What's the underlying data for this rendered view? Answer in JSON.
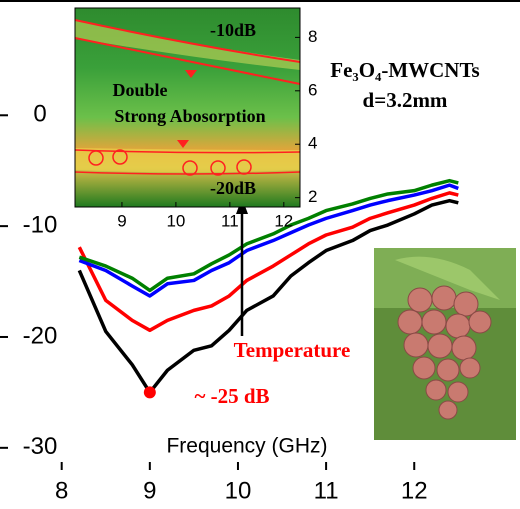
{
  "chart_data": [
    {
      "type": "line",
      "x_label": "Frequency (GHz)",
      "x": [
        8.2,
        8.5,
        8.8,
        9.0,
        9.2,
        9.5,
        9.7,
        9.9,
        10.1,
        10.4,
        10.6,
        10.8,
        11.0,
        11.3,
        11.5,
        11.7,
        12.0,
        12.2,
        12.4,
        12.5
      ],
      "series": [
        {
          "color": "#000000",
          "values": [
            -14,
            -19.5,
            -22.5,
            -25,
            -23,
            -21.2,
            -20.8,
            -19.4,
            -17.6,
            -16.3,
            -14.5,
            -13.3,
            -12.2,
            -11.3,
            -10.4,
            -9.9,
            -8.9,
            -8.1,
            -7.7,
            -7.9
          ]
        },
        {
          "color": "#ff0000",
          "values": [
            -11.9,
            -16.7,
            -18.5,
            -19.4,
            -18.5,
            -17.6,
            -17.2,
            -16.3,
            -14.9,
            -13.6,
            -12.6,
            -11.6,
            -10.8,
            -10.1,
            -9.3,
            -8.8,
            -8.1,
            -7.5,
            -7.0,
            -7.2
          ]
        },
        {
          "color": "#0000ff",
          "values": [
            -13.1,
            -14,
            -15.4,
            -16.3,
            -15.2,
            -14.9,
            -14,
            -13.3,
            -12.2,
            -11.3,
            -10.6,
            -9.9,
            -9.3,
            -8.6,
            -8.1,
            -7.7,
            -7.2,
            -6.8,
            -6.3,
            -6.6
          ]
        },
        {
          "color": "#008000",
          "values": [
            -12.8,
            -13.6,
            -14.7,
            -15.8,
            -14.7,
            -14.3,
            -13.4,
            -12.6,
            -11.6,
            -10.7,
            -9.9,
            -9.3,
            -8.6,
            -8.0,
            -7.5,
            -7.1,
            -6.8,
            -6.3,
            -5.9,
            -6.1
          ]
        }
      ],
      "marker": {
        "x": 9,
        "y": -25,
        "color": "#ff0000"
      },
      "xlim": [
        7.3,
        13.2
      ],
      "ylim": [
        -32,
        10.4
      ],
      "xticks": [
        8,
        9,
        10,
        11,
        12
      ],
      "yticks": [
        0,
        -10,
        -20,
        -30
      ],
      "annotations": {
        "temperature": "Temperature",
        "minimum": "~ -25 dB",
        "material": "Fe₃O₄-MWCNTs",
        "thickness": "d=3.2mm"
      }
    },
    {
      "type": "contour",
      "xlim": [
        8.13,
        12.3
      ],
      "ylim": [
        1.65,
        9.1
      ],
      "xticks": [
        9,
        10,
        11,
        12
      ],
      "yticks": [
        2,
        4,
        6,
        8
      ],
      "annotations": {
        "upper": "-10dB",
        "lower": "-20dB",
        "label_line1": "Double",
        "label_line2": "Strong Abosorption"
      }
    }
  ]
}
